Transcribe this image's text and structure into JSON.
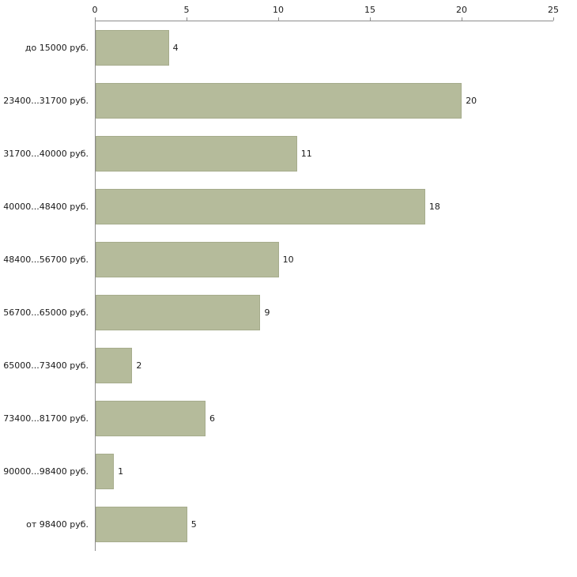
{
  "chart_data": {
    "type": "bar",
    "orientation": "horizontal",
    "title": "",
    "xlabel": "",
    "ylabel": "",
    "categories": [
      "до 15000 руб.",
      "23400...31700 руб.",
      "31700...40000 руб.",
      "40000...48400 руб.",
      "48400...56700 руб.",
      "56700...65000 руб.",
      "65000...73400 руб.",
      "73400...81700 руб.",
      "90000...98400 руб.",
      "от 98400 руб."
    ],
    "values": [
      4,
      20,
      11,
      18,
      10,
      9,
      2,
      6,
      1,
      5
    ],
    "xlim": [
      0,
      25
    ],
    "ticks": [
      0,
      5,
      10,
      15,
      20,
      25
    ],
    "axis_position": "top",
    "grid": "off",
    "legend": "none",
    "bar_color": "#b5bb9b",
    "bar_border_color": "#a6ac8c",
    "axis_color": "#8c8c8c",
    "text_color": "#1a1a1a"
  }
}
